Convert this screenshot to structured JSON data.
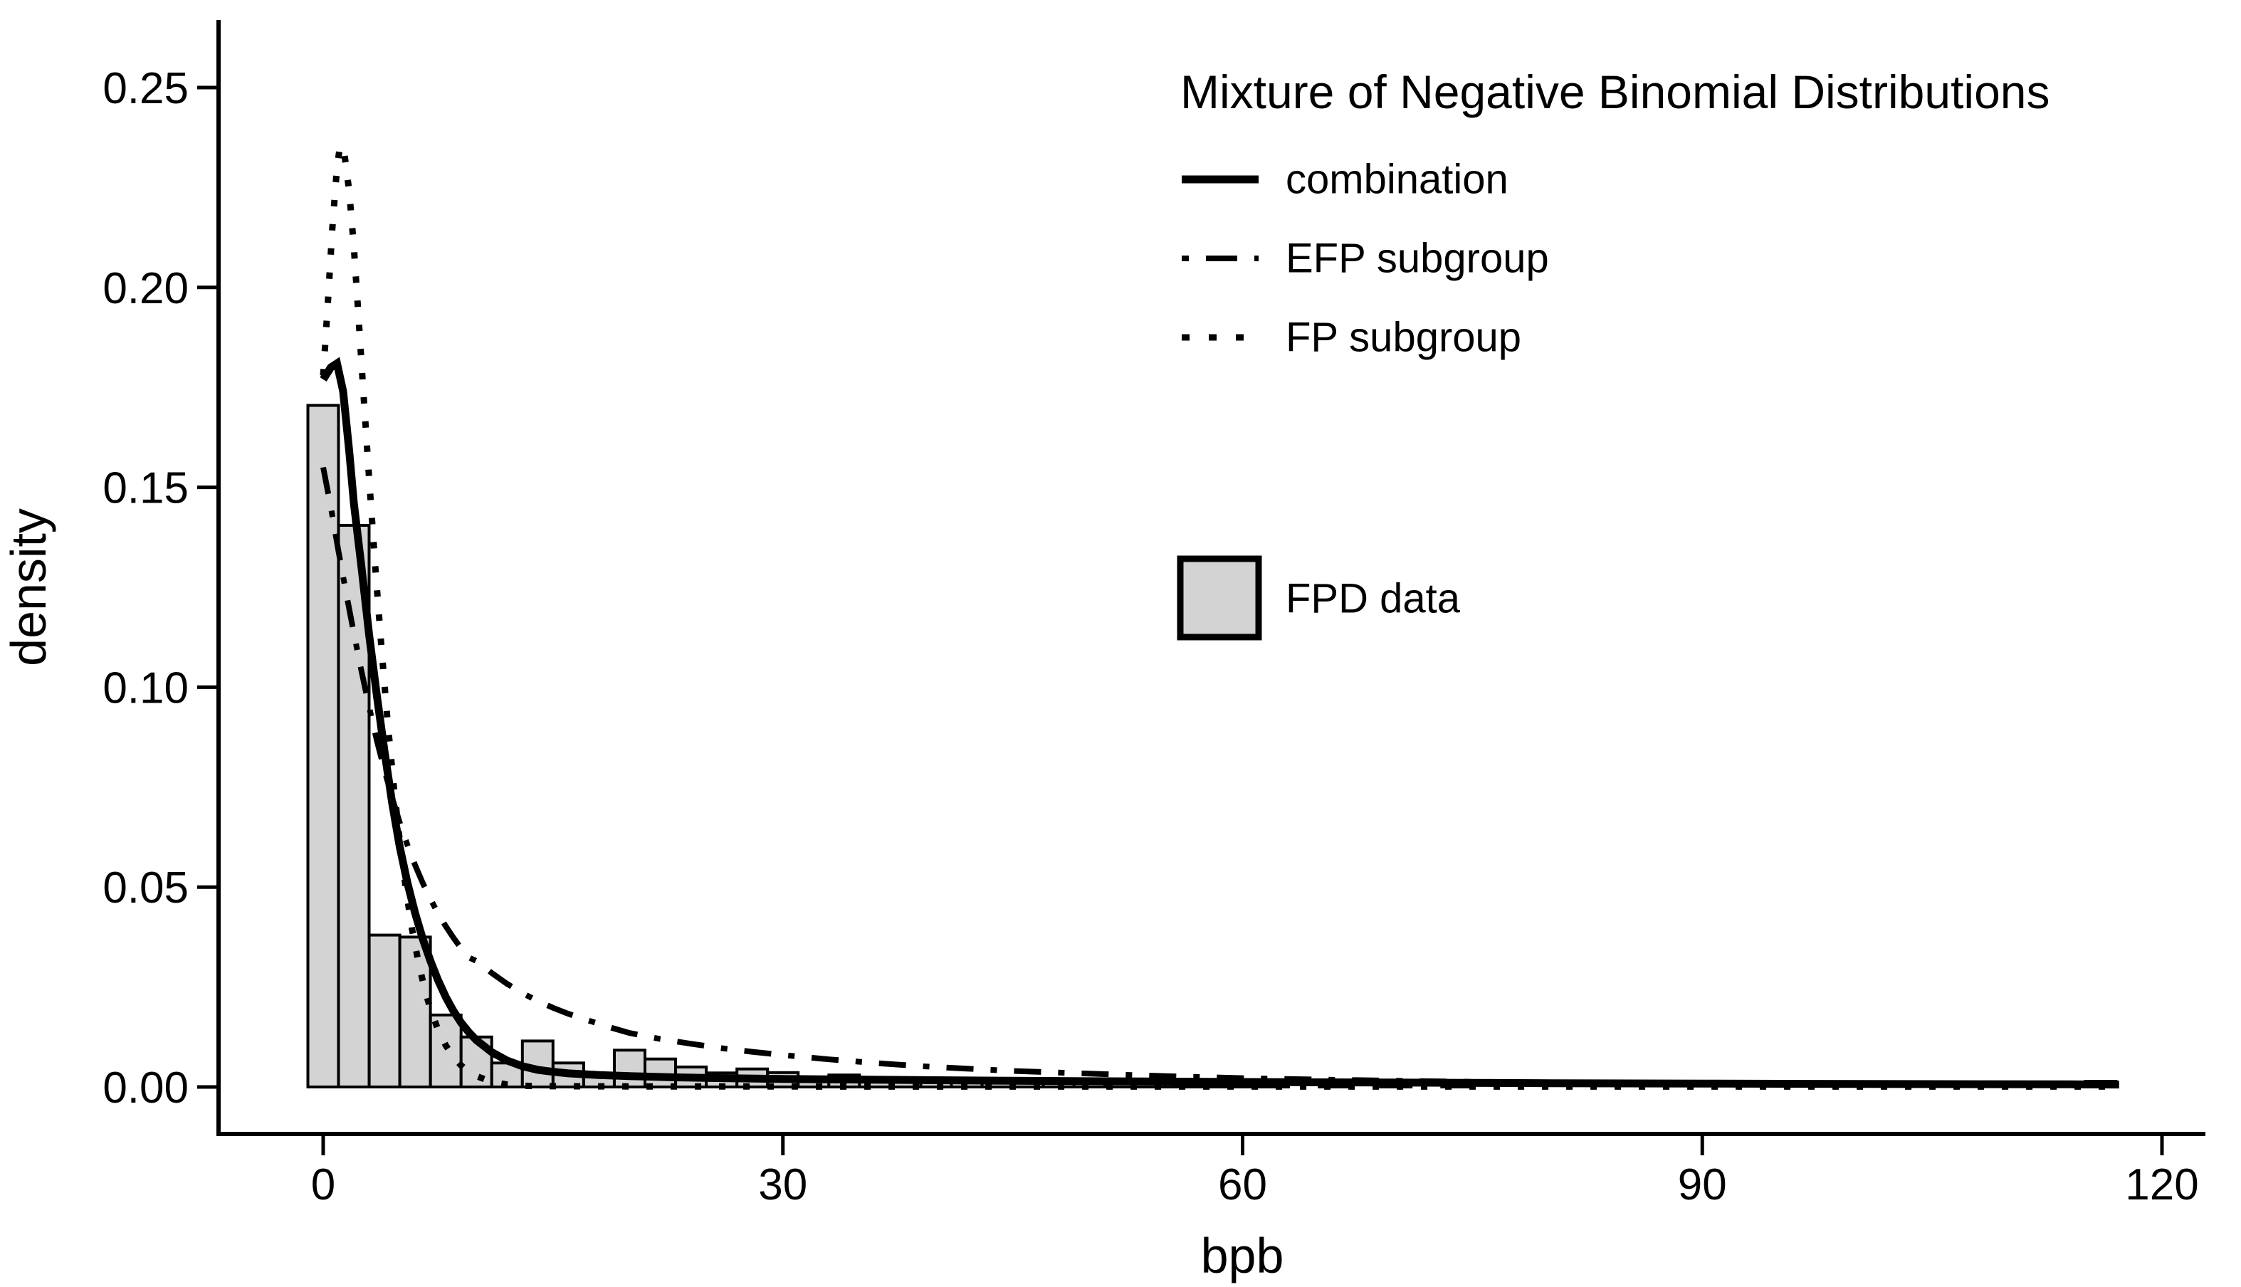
{
  "chart_data": {
    "type": "histogram_with_density_lines",
    "xlabel": "bpb",
    "ylabel": "density",
    "x_ticks": [
      0,
      30,
      60,
      90,
      120
    ],
    "x_tick_labels": [
      "0",
      "30",
      "60",
      "90",
      "120"
    ],
    "y_ticks": [
      0.0,
      0.05,
      0.1,
      0.15,
      0.2,
      0.25
    ],
    "y_tick_labels": [
      "0.00",
      "0.05",
      "0.10",
      "0.15",
      "0.20",
      "0.25"
    ],
    "xlim": [
      -7.5,
      125
    ],
    "ylim": [
      0,
      0.267
    ],
    "grid": "off",
    "legend_position": "top-right-inside",
    "colors": {
      "background": "#ffffff",
      "line": "#000000",
      "bar_fill": "#d3d3d3",
      "bar_stroke": "#000000",
      "text": "#000000"
    },
    "legend": {
      "title": "Mixture of Negative Binomial Distributions",
      "entries": [
        {
          "label": "combination",
          "style": "solid"
        },
        {
          "label": "EFP subgroup",
          "style": "dash-dot"
        },
        {
          "label": "FP subgroup",
          "style": "dotted"
        }
      ],
      "data_entry": {
        "label": "FPD data",
        "style": "gray-filled-bar"
      }
    },
    "histogram": {
      "name": "FPD data",
      "binwidth": 2,
      "centers": [
        0,
        2,
        4,
        6,
        8,
        10,
        12,
        14,
        16,
        18,
        20,
        22,
        24,
        26,
        28,
        30,
        32,
        34,
        36,
        38,
        40,
        42,
        44,
        46,
        48,
        50,
        52,
        54,
        56,
        58,
        60,
        62,
        66,
        70,
        74,
        116
      ],
      "densities": [
        0.1705,
        0.1405,
        0.038,
        0.0375,
        0.018,
        0.0125,
        0.006,
        0.0115,
        0.006,
        0.0028,
        0.0092,
        0.007,
        0.005,
        0.0035,
        0.0045,
        0.0036,
        0.002,
        0.003,
        0.0024,
        0.0018,
        0.002,
        0.0014,
        0.001,
        0.0016,
        0.001,
        0.001,
        0.0008,
        0.0012,
        0.0008,
        0.0006,
        0.0009,
        0.0005,
        0.0006,
        0.0005,
        0.0004,
        0.0014
      ]
    },
    "series": [
      {
        "name": "combination",
        "dash": "solid",
        "stroke_width": 11,
        "dasharray": "",
        "points": [
          [
            0,
            0.177
          ],
          [
            0.5,
            0.18
          ],
          [
            0.9,
            0.181
          ],
          [
            1.3,
            0.174
          ],
          [
            1.7,
            0.159
          ],
          [
            2,
            0.146
          ],
          [
            2.5,
            0.13
          ],
          [
            3,
            0.113
          ],
          [
            3.5,
            0.098
          ],
          [
            4,
            0.084
          ],
          [
            4.5,
            0.071
          ],
          [
            5,
            0.06
          ],
          [
            5.5,
            0.051
          ],
          [
            6,
            0.0435
          ],
          [
            6.5,
            0.037
          ],
          [
            7,
            0.0315
          ],
          [
            7.5,
            0.0267
          ],
          [
            8,
            0.0225
          ],
          [
            8.5,
            0.019
          ],
          [
            9,
            0.0161
          ],
          [
            9.5,
            0.0137
          ],
          [
            10,
            0.0117
          ],
          [
            11,
            0.0087
          ],
          [
            12,
            0.0066
          ],
          [
            13,
            0.0052
          ],
          [
            14,
            0.0043
          ],
          [
            15,
            0.0038
          ],
          [
            16,
            0.0034
          ],
          [
            18,
            0.003
          ],
          [
            20,
            0.0027
          ],
          [
            23,
            0.0024
          ],
          [
            26,
            0.0022
          ],
          [
            30,
            0.002
          ],
          [
            35,
            0.00185
          ],
          [
            40,
            0.0017
          ],
          [
            45,
            0.00155
          ],
          [
            50,
            0.00145
          ],
          [
            55,
            0.00135
          ],
          [
            60,
            0.00125
          ],
          [
            70,
            0.0011
          ],
          [
            80,
            0.00095
          ],
          [
            90,
            0.00085
          ],
          [
            100,
            0.00075
          ],
          [
            108,
            0.0007
          ],
          [
            114,
            0.00065
          ],
          [
            117.2,
            0.0006
          ]
        ]
      },
      {
        "name": "EFP subgroup",
        "dash": "dash-dot",
        "stroke_width": 8,
        "dasharray": "38 24 9 24",
        "points": [
          [
            0,
            0.155
          ],
          [
            0.5,
            0.145
          ],
          [
            1,
            0.134
          ],
          [
            1.5,
            0.1235
          ],
          [
            2,
            0.1135
          ],
          [
            2.5,
            0.104
          ],
          [
            3,
            0.095
          ],
          [
            3.5,
            0.0867
          ],
          [
            4,
            0.0792
          ],
          [
            4.5,
            0.0723
          ],
          [
            5,
            0.0661
          ],
          [
            5.5,
            0.0605
          ],
          [
            6,
            0.0555
          ],
          [
            6.5,
            0.051
          ],
          [
            7,
            0.047
          ],
          [
            7.5,
            0.0434
          ],
          [
            8,
            0.0402
          ],
          [
            8.5,
            0.0373
          ],
          [
            9,
            0.0347
          ],
          [
            9.5,
            0.0324
          ],
          [
            10,
            0.0315
          ],
          [
            11,
            0.0285
          ],
          [
            12,
            0.0258
          ],
          [
            13,
            0.0235
          ],
          [
            14,
            0.0215
          ],
          [
            15,
            0.0198
          ],
          [
            16,
            0.0183
          ],
          [
            17,
            0.017
          ],
          [
            18,
            0.0158
          ],
          [
            19,
            0.0146
          ],
          [
            20,
            0.0135
          ],
          [
            22,
            0.012
          ],
          [
            24,
            0.0108
          ],
          [
            26,
            0.0097
          ],
          [
            28,
            0.0088
          ],
          [
            30,
            0.008
          ],
          [
            33,
            0.0069
          ],
          [
            36,
            0.006
          ],
          [
            39,
            0.0052
          ],
          [
            42,
            0.0046
          ],
          [
            45,
            0.004
          ],
          [
            48,
            0.0036
          ],
          [
            51,
            0.0032
          ],
          [
            55,
            0.0027
          ],
          [
            60,
            0.0022
          ],
          [
            65,
            0.00185
          ],
          [
            70,
            0.00155
          ],
          [
            75,
            0.0013
          ],
          [
            80,
            0.0011
          ],
          [
            85,
            0.00095
          ],
          [
            90,
            0.0008
          ],
          [
            95,
            0.0007
          ],
          [
            100,
            0.0006
          ],
          [
            105,
            0.00052
          ],
          [
            110,
            0.00045
          ],
          [
            117.2,
            0.0004
          ]
        ]
      },
      {
        "name": "FP subgroup",
        "dash": "dotted",
        "stroke_width": 9,
        "dasharray": "9 25",
        "points": [
          [
            0,
            0.178
          ],
          [
            0.3,
            0.196
          ],
          [
            0.6,
            0.215
          ],
          [
            0.9,
            0.23
          ],
          [
            1.1,
            0.2355
          ],
          [
            1.4,
            0.233
          ],
          [
            1.7,
            0.224
          ],
          [
            2,
            0.21
          ],
          [
            2.3,
            0.193
          ],
          [
            2.6,
            0.175
          ],
          [
            3,
            0.152
          ],
          [
            3.4,
            0.13
          ],
          [
            3.8,
            0.11
          ],
          [
            4.2,
            0.0915
          ],
          [
            4.6,
            0.0755
          ],
          [
            5,
            0.0615
          ],
          [
            5.4,
            0.0495
          ],
          [
            5.8,
            0.0395
          ],
          [
            6.2,
            0.0315
          ],
          [
            6.6,
            0.0248
          ],
          [
            7,
            0.0194
          ],
          [
            7.5,
            0.0143
          ],
          [
            8,
            0.0104
          ],
          [
            8.5,
            0.0075
          ],
          [
            9,
            0.0054
          ],
          [
            9.5,
            0.0038
          ],
          [
            10,
            0.0027
          ],
          [
            11,
            0.0013
          ],
          [
            12,
            0.0006
          ],
          [
            13,
            0.0003
          ],
          [
            14,
            0.00022
          ],
          [
            16,
            0.00018
          ],
          [
            20,
            0.00015
          ],
          [
            30,
            0.00012
          ],
          [
            45,
            0.0001
          ],
          [
            60,
            0.0001
          ],
          [
            80,
            0.0001
          ],
          [
            100,
            0.0001
          ],
          [
            117.2,
            0.0001
          ]
        ]
      }
    ]
  }
}
